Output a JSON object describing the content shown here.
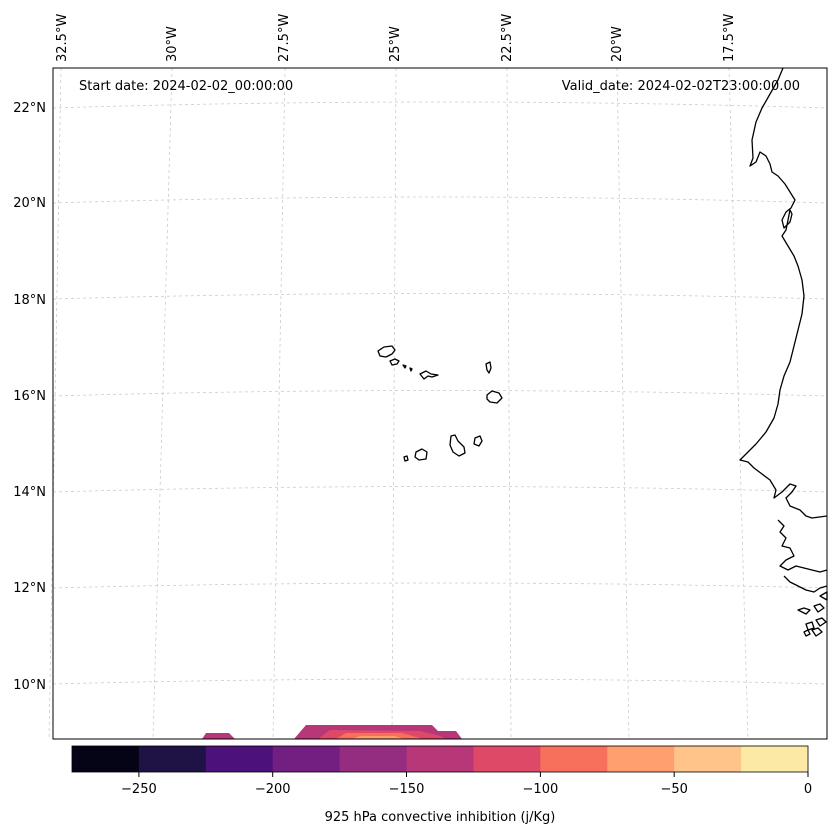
{
  "header": {
    "start_date": "Start date: 2024-02-02_00:00:00",
    "valid_date": "Valid_date: 2024-02-02T23:00:00.00"
  },
  "axes": {
    "lon_labels": [
      "32.5°W",
      "30°W",
      "27.5°W",
      "25°W",
      "22.5°W",
      "20°W",
      "17.5°W"
    ],
    "lat_labels": [
      "22°N",
      "20°N",
      "18°N",
      "16°N",
      "14°N",
      "12°N",
      "10°N"
    ]
  },
  "colorbar": {
    "label": "925 hPa convective inhibition (j/Kg)",
    "ticks": [
      "−250",
      "−200",
      "−150",
      "−100",
      "−50",
      "0"
    ],
    "colors": [
      "#050416",
      "#1f1244",
      "#4c117a",
      "#721f81",
      "#942c80",
      "#b73779",
      "#de4968",
      "#f6705c",
      "#fe9f6d",
      "#fec48a",
      "#fde9a6"
    ]
  },
  "map_features": {
    "cin_patch_colors": [
      "#b73779",
      "#de4968",
      "#f6705c",
      "#fe9f6d"
    ]
  }
}
